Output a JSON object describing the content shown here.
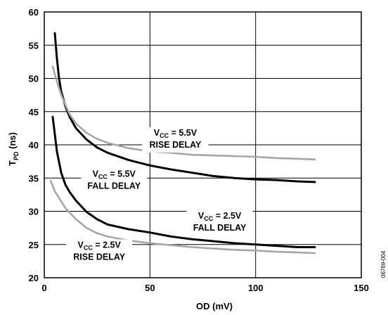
{
  "chart_data": {
    "type": "line",
    "xlabel": "OD (mV)",
    "ylabel_main": "T",
    "ylabel_sub": "PD",
    "ylabel_unit": " (ns)",
    "xlim": [
      0,
      150
    ],
    "ylim": [
      20,
      60
    ],
    "xticks": [
      0,
      50,
      100,
      150
    ],
    "yticks": [
      20,
      25,
      30,
      35,
      40,
      45,
      50,
      55,
      60
    ],
    "grid": true,
    "figure_id": "06769-004",
    "colors": {
      "black": "#000000",
      "gray": "#a6a6a6"
    },
    "series": [
      {
        "color": "black",
        "x": [
          5,
          6,
          7,
          8,
          10,
          12,
          15,
          20,
          25,
          30,
          40,
          50,
          60,
          70,
          80,
          90,
          100,
          110,
          120,
          128
        ],
        "y": [
          56.8,
          53,
          50,
          48,
          45.8,
          44.2,
          42.5,
          40.8,
          39.6,
          38.8,
          37.7,
          36.9,
          36.3,
          35.8,
          35.3,
          35,
          34.8,
          34.7,
          34.5,
          34.4
        ]
      },
      {
        "color": "gray",
        "x": [
          4,
          6,
          8,
          10,
          12,
          15,
          20,
          25,
          30,
          40,
          50,
          60,
          70,
          80,
          90,
          100,
          110,
          120,
          128
        ],
        "y": [
          51.8,
          49.5,
          47.5,
          46,
          44.6,
          43.2,
          41.8,
          40.9,
          40.3,
          39.5,
          39,
          38.8,
          38.5,
          38.4,
          38.3,
          38.2,
          38,
          37.9,
          37.8
        ]
      },
      {
        "color": "black",
        "x": [
          4,
          6,
          8,
          10,
          12,
          15,
          20,
          25,
          30,
          40,
          50,
          60,
          70,
          80,
          90,
          100,
          110,
          120,
          128
        ],
        "y": [
          44.2,
          39,
          35.8,
          34,
          32.9,
          31.6,
          29.9,
          28.8,
          28,
          27.3,
          26.8,
          26.2,
          25.8,
          25.5,
          25.2,
          25,
          24.8,
          24.6,
          24.6
        ]
      },
      {
        "color": "gray",
        "x": [
          3,
          5,
          8,
          10,
          12,
          15,
          20,
          25,
          30,
          40,
          50,
          60,
          70,
          80,
          90,
          100,
          110,
          120,
          128
        ],
        "y": [
          34.6,
          33,
          31.5,
          30.5,
          29.8,
          28.8,
          27.5,
          26.7,
          26.2,
          25.6,
          25.2,
          24.9,
          24.6,
          24.4,
          24.2,
          24.1,
          23.9,
          23.8,
          23.7
        ]
      }
    ],
    "annotations": [
      {
        "main": "V",
        "sub": "CC",
        "rest": " = 5.5V",
        "line2": "RISE DELAY",
        "anchor": [
          62,
          41.6
        ]
      },
      {
        "main": "V",
        "sub": "CC",
        "rest": " = 5.5V",
        "line2": "FALL DELAY",
        "anchor": [
          33,
          35.4
        ]
      },
      {
        "main": "V",
        "sub": "CC",
        "rest": " = 2.5V",
        "line2": "FALL DELAY",
        "anchor": [
          83,
          29.1
        ]
      },
      {
        "main": "V",
        "sub": "CC",
        "rest": " = 2.5V",
        "line2": "RISE DELAY",
        "anchor": [
          26,
          24.7
        ]
      }
    ]
  }
}
